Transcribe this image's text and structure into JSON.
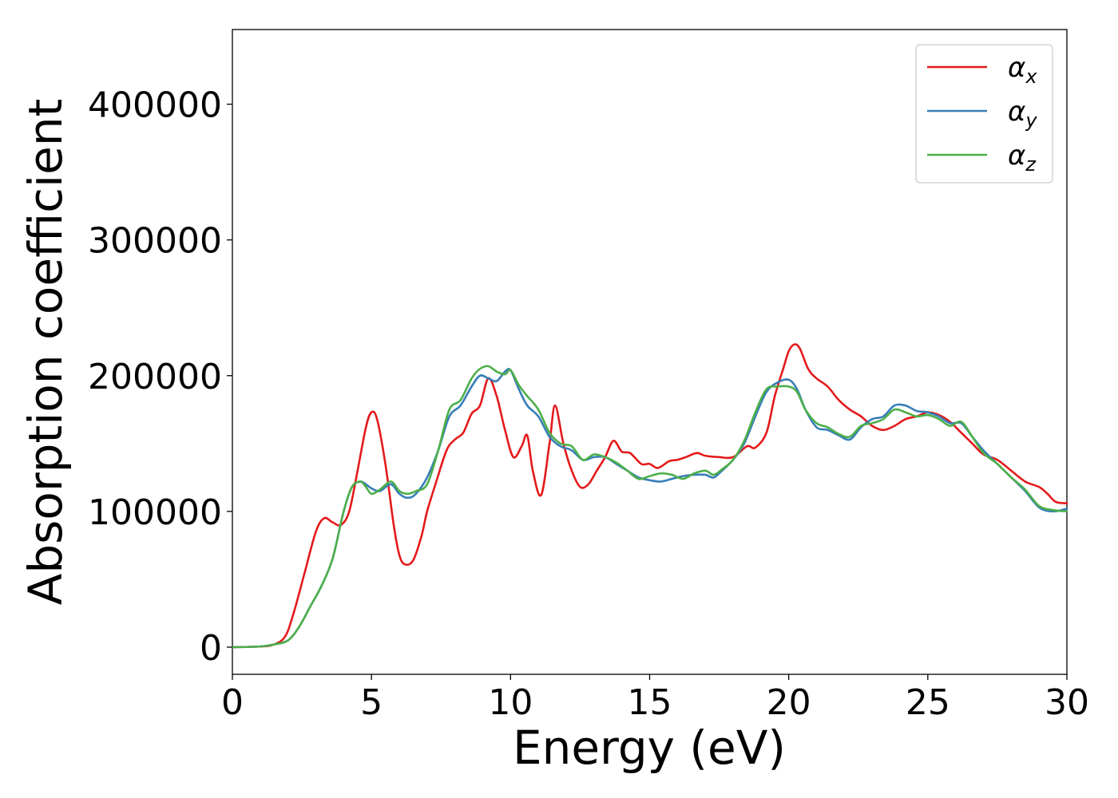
{
  "chart_data": {
    "type": "line",
    "title": "",
    "xlabel": "Energy (eV)",
    "ylabel": "Absorption coefficient",
    "xlim": [
      0,
      30
    ],
    "ylim": [
      -20000,
      455000
    ],
    "xticks": [
      0,
      5,
      10,
      15,
      20,
      25,
      30
    ],
    "yticks": [
      0,
      100000,
      200000,
      300000,
      400000
    ],
    "xtick_labels": [
      "0",
      "5",
      "10",
      "15",
      "20",
      "25",
      "30"
    ],
    "ytick_labels": [
      "0",
      "100000",
      "200000",
      "300000",
      "400000"
    ],
    "grid": false,
    "legend_position": "top-right",
    "series": [
      {
        "name": "αx",
        "symbol": "α",
        "subscript": "x",
        "color": "#e41a1c",
        "x": [
          0,
          1,
          1.5,
          1.9,
          2.2,
          2.6,
          3.0,
          3.3,
          3.6,
          3.9,
          4.2,
          4.5,
          4.8,
          5.0,
          5.2,
          5.5,
          5.8,
          6.0,
          6.2,
          6.5,
          6.8,
          7.0,
          7.3,
          7.7,
          8.0,
          8.3,
          8.6,
          8.9,
          9.2,
          9.5,
          9.8,
          10.1,
          10.4,
          10.6,
          10.8,
          11.1,
          11.4,
          11.6,
          11.9,
          12.2,
          12.5,
          12.8,
          13.1,
          13.4,
          13.7,
          14.0,
          14.3,
          14.7,
          15.0,
          15.3,
          15.7,
          16.0,
          16.3,
          16.7,
          17.0,
          17.5,
          18.0,
          18.5,
          18.8,
          19.2,
          19.5,
          19.8,
          20.0,
          20.2,
          20.4,
          20.7,
          21.0,
          21.4,
          21.8,
          22.2,
          22.6,
          23.0,
          23.4,
          23.8,
          24.2,
          24.6,
          25.0,
          25.4,
          25.8,
          26.2,
          26.6,
          27.0,
          27.5,
          28.0,
          28.5,
          29.0,
          29.3,
          29.6,
          30.0
        ],
        "y": [
          0,
          500,
          2000,
          8000,
          25000,
          55000,
          85000,
          95000,
          92000,
          90000,
          100000,
          130000,
          162000,
          173000,
          168000,
          135000,
          90000,
          68000,
          61000,
          64000,
          82000,
          100000,
          120000,
          145000,
          153000,
          158000,
          172000,
          178000,
          198000,
          185000,
          160000,
          140000,
          148000,
          156000,
          130000,
          112000,
          150000,
          178000,
          150000,
          130000,
          118000,
          120000,
          130000,
          140000,
          152000,
          144000,
          143000,
          135000,
          135000,
          132000,
          137000,
          138000,
          140000,
          143000,
          141000,
          140000,
          140000,
          148000,
          147000,
          158000,
          185000,
          205000,
          218000,
          223000,
          220000,
          205000,
          198000,
          192000,
          182000,
          175000,
          170000,
          163000,
          160000,
          163000,
          168000,
          170000,
          173000,
          171000,
          166000,
          158000,
          150000,
          142000,
          138000,
          130000,
          122000,
          118000,
          113000,
          107000,
          106000
        ]
      },
      {
        "name": "αy",
        "symbol": "α",
        "subscript": "y",
        "color": "#377eb8",
        "x": [
          0,
          1,
          1.5,
          2.0,
          2.4,
          2.8,
          3.2,
          3.6,
          4.0,
          4.3,
          4.6,
          4.8,
          5.0,
          5.3,
          5.7,
          6.0,
          6.3,
          6.6,
          7.0,
          7.4,
          7.8,
          8.2,
          8.6,
          8.9,
          9.2,
          9.5,
          9.8,
          10.0,
          10.3,
          10.6,
          11.0,
          11.4,
          11.8,
          12.2,
          12.6,
          13.0,
          13.4,
          13.8,
          14.2,
          14.6,
          15.0,
          15.4,
          15.8,
          16.2,
          16.6,
          17.0,
          17.3,
          17.6,
          18.0,
          18.4,
          18.8,
          19.2,
          19.6,
          20.0,
          20.3,
          20.6,
          21.0,
          21.4,
          21.8,
          22.2,
          22.6,
          23.0,
          23.4,
          23.8,
          24.2,
          24.6,
          25.0,
          25.4,
          25.8,
          26.2,
          26.6,
          27.0,
          27.5,
          28.0,
          28.5,
          29.0,
          29.5,
          30.0
        ],
        "y": [
          0,
          500,
          2000,
          5000,
          15000,
          30000,
          45000,
          65000,
          100000,
          118000,
          122000,
          120000,
          117000,
          115000,
          120000,
          113000,
          110000,
          113000,
          125000,
          145000,
          170000,
          178000,
          192000,
          200000,
          198000,
          196000,
          203000,
          204000,
          190000,
          178000,
          170000,
          155000,
          148000,
          145000,
          138000,
          140000,
          140000,
          135000,
          130000,
          125000,
          123000,
          122000,
          124000,
          126000,
          127000,
          127000,
          125000,
          130000,
          138000,
          150000,
          170000,
          188000,
          195000,
          197000,
          190000,
          175000,
          162000,
          160000,
          156000,
          153000,
          162000,
          168000,
          170000,
          178000,
          178000,
          174000,
          173000,
          170000,
          165000,
          165000,
          155000,
          145000,
          135000,
          125000,
          115000,
          103000,
          100000,
          102000
        ]
      },
      {
        "name": "αz",
        "symbol": "α",
        "subscript": "z",
        "color": "#4daf4a",
        "x": [
          0,
          1,
          1.5,
          2.0,
          2.4,
          2.8,
          3.2,
          3.6,
          4.0,
          4.3,
          4.6,
          4.8,
          5.0,
          5.3,
          5.7,
          6.0,
          6.3,
          6.6,
          7.0,
          7.4,
          7.8,
          8.2,
          8.6,
          8.9,
          9.2,
          9.5,
          9.8,
          10.0,
          10.3,
          10.6,
          11.0,
          11.4,
          11.8,
          12.2,
          12.6,
          13.0,
          13.4,
          13.8,
          14.2,
          14.6,
          15.0,
          15.4,
          15.8,
          16.2,
          16.6,
          17.0,
          17.3,
          17.6,
          18.0,
          18.4,
          18.8,
          19.2,
          19.6,
          20.0,
          20.3,
          20.6,
          21.0,
          21.4,
          21.8,
          22.2,
          22.6,
          23.0,
          23.4,
          23.8,
          24.2,
          24.6,
          25.0,
          25.4,
          25.8,
          26.2,
          26.6,
          27.0,
          27.5,
          28.0,
          28.5,
          29.0,
          29.5,
          30.0
        ],
        "y": [
          0,
          500,
          2000,
          5000,
          15000,
          30000,
          45000,
          65000,
          100000,
          118000,
          122000,
          118000,
          113000,
          116000,
          122000,
          115000,
          113000,
          115000,
          120000,
          145000,
          175000,
          182000,
          198000,
          205000,
          207000,
          203000,
          201000,
          204000,
          193000,
          185000,
          175000,
          158000,
          150000,
          148000,
          138000,
          142000,
          140000,
          136000,
          130000,
          124000,
          126000,
          128000,
          127000,
          124000,
          128000,
          130000,
          127000,
          131000,
          138000,
          152000,
          173000,
          190000,
          192000,
          192000,
          188000,
          175000,
          165000,
          162000,
          157000,
          155000,
          163000,
          165000,
          168000,
          175000,
          173000,
          170000,
          171000,
          168000,
          163000,
          166000,
          155000,
          143000,
          135000,
          125000,
          116000,
          104000,
          101000,
          100000
        ]
      }
    ]
  }
}
